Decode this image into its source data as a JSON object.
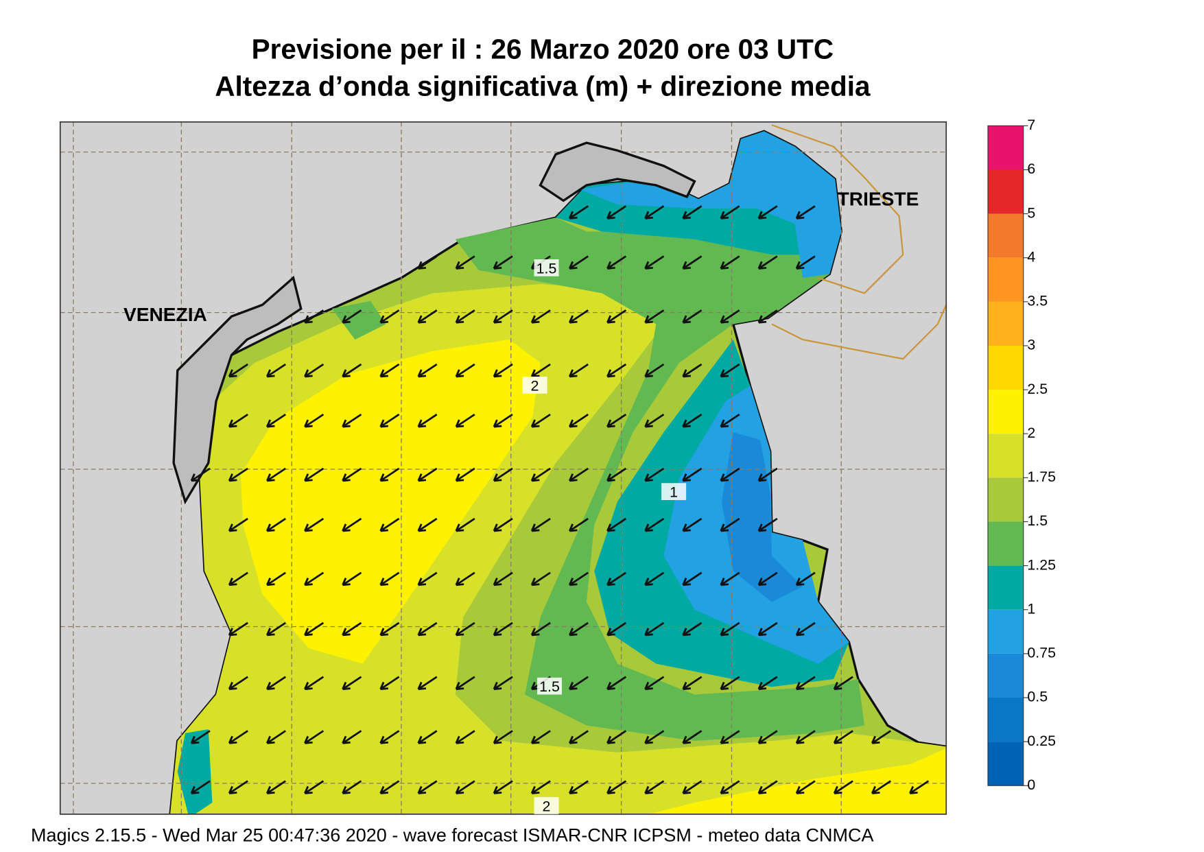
{
  "title": "Previsione per il  :  26   Marzo   2020   ore 03 UTC",
  "subtitle": "Altezza d’onda significativa (m) + direzione media",
  "cities": [
    "VENEZIA",
    "TRIESTE"
  ],
  "contour_labels": [
    "1.5",
    "2",
    "1",
    "1.5",
    "2"
  ],
  "legend": {
    "ticks": [
      0,
      0.25,
      0.5,
      0.75,
      1,
      1.25,
      1.5,
      1.75,
      2,
      2.5,
      3,
      3.5,
      4,
      5,
      6,
      7
    ],
    "colors": [
      "#0062b4",
      "#0a76c6",
      "#1a8ad8",
      "#22a2e2",
      "#00aaa2",
      "#62b952",
      "#a8c93a",
      "#d7e12a",
      "#fff200",
      "#ffd700",
      "#ffb21e",
      "#ff9420",
      "#f27a2a",
      "#e5272a",
      "#e8136a"
    ]
  },
  "footer": "Magics 2.15.5 - Wed Mar 25 00:47:36 2020 - wave forecast  ISMAR-CNR  ICPSM - meteo data   CNMCA"
}
